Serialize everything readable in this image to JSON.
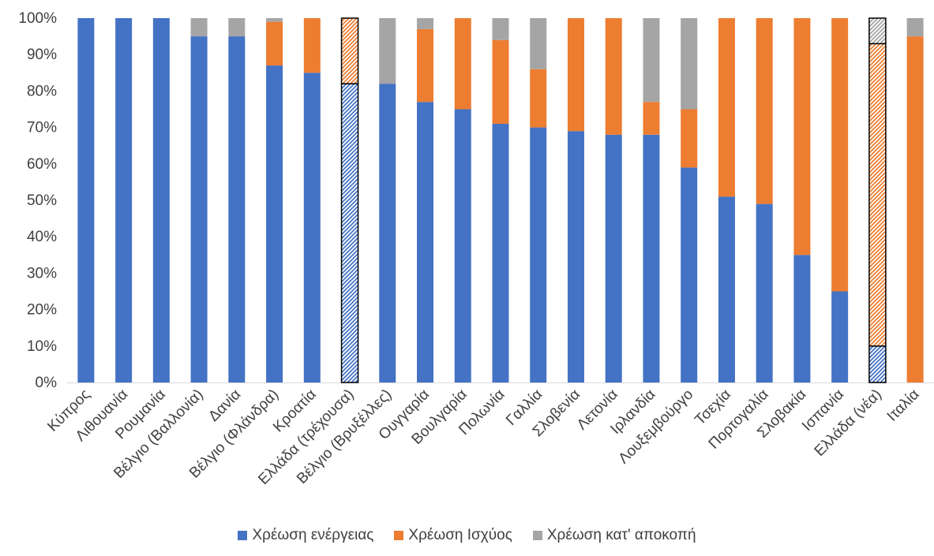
{
  "chart_data": {
    "type": "bar",
    "stacked": true,
    "categories": [
      "Κύπρος",
      "Λιθουανία",
      "Ρουμανία",
      "Βέλγιο (Βαλλονία)",
      "Δανία",
      "Βέλγιο (Φλάνδρα)",
      "Κροατία",
      "Ελλάδα (τρέχουσα)",
      "Βέλγιο (Βρυξέλλες)",
      "Ουγγαρία",
      "Βουλγαρία",
      "Πολωνία",
      "Γαλλία",
      "Σλοβενία",
      "Λετονία",
      "Ιρλανδία",
      "Λουξεμβούργο",
      "Τσεχία",
      "Πορτογαλία",
      "Σλοβακία",
      "Ισπανία",
      "Ελλάδα (νέα)",
      "Ιταλία"
    ],
    "series": [
      {
        "name": "Χρέωση ενέργειας",
        "color": "#4472C4",
        "values": [
          100,
          100,
          100,
          95,
          95,
          87,
          85,
          82,
          82,
          77,
          75,
          71,
          70,
          69,
          68,
          68,
          59,
          51,
          49,
          35,
          25,
          10,
          0
        ]
      },
      {
        "name": "Χρέωση Ισχύος",
        "color": "#ED7D31",
        "values": [
          0,
          0,
          0,
          0,
          0,
          12,
          15,
          18,
          0,
          20,
          25,
          23,
          16,
          31,
          32,
          9,
          16,
          49,
          51,
          65,
          75,
          83,
          95
        ]
      },
      {
        "name": "Χρέωση κατ' αποκοπή",
        "color": "#A5A5A5",
        "values": [
          0,
          0,
          0,
          5,
          5,
          1,
          0,
          0,
          18,
          3,
          0,
          6,
          14,
          0,
          0,
          23,
          25,
          0,
          0,
          0,
          0,
          7,
          5
        ]
      }
    ],
    "highlighted_categories": [
      "Ελλάδα (τρέχουσα)",
      "Ελλάδα (νέα)"
    ],
    "highlight_style": "hatched with black outline",
    "ylim": [
      0,
      100
    ],
    "yticks": [
      "0%",
      "10%",
      "20%",
      "30%",
      "40%",
      "50%",
      "60%",
      "70%",
      "80%",
      "90%",
      "100%"
    ],
    "grid": false,
    "legend_position": "bottom",
    "title": "",
    "xlabel": "",
    "ylabel": ""
  }
}
